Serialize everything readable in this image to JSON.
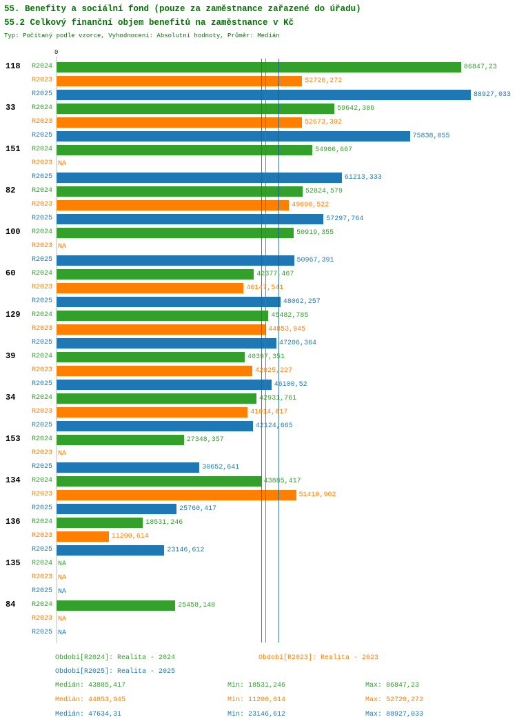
{
  "header": {
    "title_line1": "55. Benefity a sociální fond (pouze za zaměstnance zařazené do úřadu)",
    "title_line2": "55.2 Celkový finanční objem benefitů na zaměstnance v Kč",
    "meta": "Typ: Počítaný podle vzorce, Vyhodnocení: Absolutní hodnoty, Průměr: Medián"
  },
  "colors": {
    "R2024": "#33a02c",
    "R2023": "#ff7f00",
    "R2025": "#1f78b4",
    "median_R2024": "#1f7a1f",
    "median_R2023": "#b35900",
    "median_R2025": "#155a85",
    "title": "#007700",
    "group_label": "#000000"
  },
  "chart_data": {
    "type": "bar",
    "orientation": "horizontal",
    "value_axis": {
      "zero_label": "0",
      "min": 0,
      "max": 88927.033
    },
    "series": [
      "R2024",
      "R2023",
      "R2025"
    ],
    "groups": [
      {
        "label": "118",
        "bars": [
          {
            "series": "R2024",
            "value": 86847.23,
            "label": "86847,23"
          },
          {
            "series": "R2023",
            "value": 52720.272,
            "label": "52720,272"
          },
          {
            "series": "R2025",
            "value": 88927.033,
            "label": "88927,033"
          }
        ]
      },
      {
        "label": "33",
        "bars": [
          {
            "series": "R2024",
            "value": 59642.386,
            "label": "59642,386"
          },
          {
            "series": "R2023",
            "value": 52673.392,
            "label": "52673,392"
          },
          {
            "series": "R2025",
            "value": 75838.055,
            "label": "75838,055"
          }
        ]
      },
      {
        "label": "151",
        "bars": [
          {
            "series": "R2024",
            "value": 54906.667,
            "label": "54906,667"
          },
          {
            "series": "R2023",
            "value": null,
            "label": "NA"
          },
          {
            "series": "R2025",
            "value": 61213.333,
            "label": "61213,333"
          }
        ]
      },
      {
        "label": "82",
        "bars": [
          {
            "series": "R2024",
            "value": 52824.579,
            "label": "52824,579"
          },
          {
            "series": "R2023",
            "value": 49890.522,
            "label": "49890,522"
          },
          {
            "series": "R2025",
            "value": 57297.764,
            "label": "57297,764"
          }
        ]
      },
      {
        "label": "100",
        "bars": [
          {
            "series": "R2024",
            "value": 50919.355,
            "label": "50919,355"
          },
          {
            "series": "R2023",
            "value": null,
            "label": "NA"
          },
          {
            "series": "R2025",
            "value": 50967.391,
            "label": "50967,391"
          }
        ]
      },
      {
        "label": "60",
        "bars": [
          {
            "series": "R2024",
            "value": 42377.467,
            "label": "42377,467"
          },
          {
            "series": "R2023",
            "value": 40147.541,
            "label": "40147,541"
          },
          {
            "series": "R2025",
            "value": 48062.257,
            "label": "48062,257"
          }
        ]
      },
      {
        "label": "129",
        "bars": [
          {
            "series": "R2024",
            "value": 45482.785,
            "label": "45482,785"
          },
          {
            "series": "R2023",
            "value": 44853.945,
            "label": "44853,945"
          },
          {
            "series": "R2025",
            "value": 47206.364,
            "label": "47206,364"
          }
        ]
      },
      {
        "label": "39",
        "bars": [
          {
            "series": "R2024",
            "value": 40397.351,
            "label": "40397,351"
          },
          {
            "series": "R2023",
            "value": 42025.227,
            "label": "42025,227"
          },
          {
            "series": "R2025",
            "value": 46100.52,
            "label": "46100,52"
          }
        ]
      },
      {
        "label": "34",
        "bars": [
          {
            "series": "R2024",
            "value": 42931.761,
            "label": "42931,761"
          },
          {
            "series": "R2023",
            "value": 41014.617,
            "label": "41014,617"
          },
          {
            "series": "R2025",
            "value": 42124.665,
            "label": "42124,665"
          }
        ]
      },
      {
        "label": "153",
        "bars": [
          {
            "series": "R2024",
            "value": 27348.357,
            "label": "27348,357"
          },
          {
            "series": "R2023",
            "value": null,
            "label": "NA"
          },
          {
            "series": "R2025",
            "value": 30652.641,
            "label": "30652,641"
          }
        ]
      },
      {
        "label": "134",
        "bars": [
          {
            "series": "R2024",
            "value": 43885.417,
            "label": "43885,417"
          },
          {
            "series": "R2023",
            "value": 51410.902,
            "label": "51410,902"
          },
          {
            "series": "R2025",
            "value": 25760.417,
            "label": "25760,417"
          }
        ]
      },
      {
        "label": "136",
        "bars": [
          {
            "series": "R2024",
            "value": 18531.246,
            "label": "18531,246"
          },
          {
            "series": "R2023",
            "value": 11200.614,
            "label": "11200,614"
          },
          {
            "series": "R2025",
            "value": 23146.612,
            "label": "23146,612"
          }
        ]
      },
      {
        "label": "135",
        "bars": [
          {
            "series": "R2024",
            "value": null,
            "label": "NA"
          },
          {
            "series": "R2023",
            "value": null,
            "label": "NA"
          },
          {
            "series": "R2025",
            "value": null,
            "label": "NA"
          }
        ]
      },
      {
        "label": "84",
        "bars": [
          {
            "series": "R2024",
            "value": 25458.148,
            "label": "25458,148"
          },
          {
            "series": "R2023",
            "value": null,
            "label": "NA"
          },
          {
            "series": "R2025",
            "value": null,
            "label": "NA"
          }
        ]
      }
    ],
    "median_lines": [
      {
        "series": "R2024",
        "value": 43885.417
      },
      {
        "series": "R2023",
        "value": 44853.945
      },
      {
        "series": "R2025",
        "value": 47634.31
      }
    ]
  },
  "legend": [
    {
      "series": "R2024",
      "label": "Období[R2024]: Realita - 2024"
    },
    {
      "series": "R2023",
      "label": "Období[R2023]: Realita - 2023"
    },
    {
      "series": "R2025",
      "label": "Období[R2025]: Realita - 2025"
    }
  ],
  "stats": [
    {
      "series": "R2024",
      "median": "Medián: 43885,417",
      "min": "Min: 18531,246",
      "max": "Max: 86847,23"
    },
    {
      "series": "R2023",
      "median": "Medián: 44853,945",
      "min": "Min: 11200,614",
      "max": "Max: 52720,272"
    },
    {
      "series": "R2025",
      "median": "Medián: 47634,31",
      "min": "Min: 23146,612",
      "max": "Max: 88927,033"
    }
  ]
}
